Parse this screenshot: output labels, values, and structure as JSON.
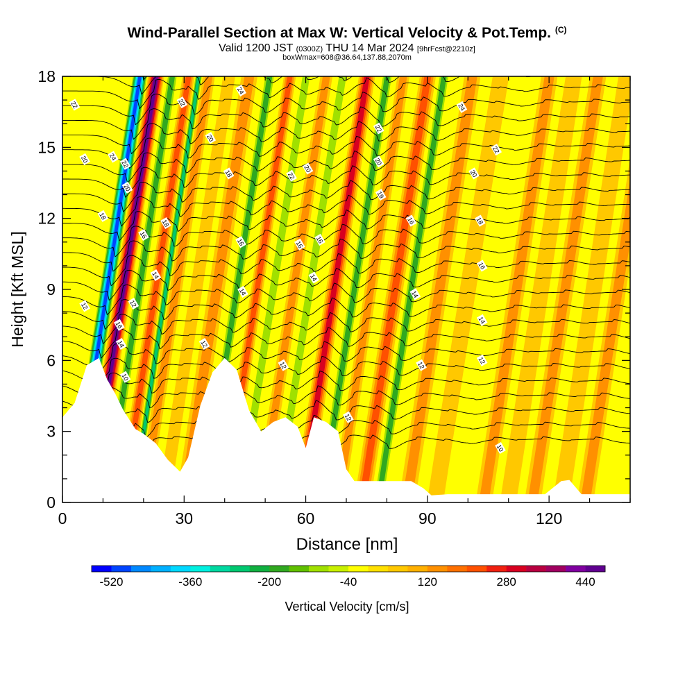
{
  "title": {
    "main": "Wind-Parallel Section at Max W: Vertical Velocity & Pot.Temp.",
    "tag": "(C)",
    "valid_prefix": "Valid 1200 JST",
    "valid_utc": "(0300Z)",
    "valid_suffix": "THU 14 Mar 2024",
    "forecast": "[9hrFcst@2210z]",
    "box": "boxWmax=608@36.64,137.88,2070m"
  },
  "chart_data": {
    "type": "heatmap",
    "xlabel": "Distance [nm]",
    "ylabel": "Height [Kft MSL]",
    "xlim": [
      0,
      140
    ],
    "ylim": [
      0,
      18
    ],
    "x_ticks": [
      "0",
      "30",
      "60",
      "90",
      "120"
    ],
    "x_tick_values": [
      0,
      30,
      60,
      90,
      120
    ],
    "y_ticks": [
      "0",
      "3",
      "6",
      "9",
      "12",
      "15",
      "18"
    ],
    "y_tick_values": [
      0,
      3,
      6,
      9,
      12,
      15,
      18
    ],
    "colorbar": {
      "label": "Vertical Velocity [cm/s]",
      "tick_labels": [
        "-520",
        "-360",
        "-200",
        "-40",
        "120",
        "280",
        "440"
      ],
      "min": -560,
      "step": 40,
      "colors": [
        "#0000ff",
        "#0044ff",
        "#0088ff",
        "#00b0ff",
        "#00d8ff",
        "#00f0e0",
        "#00d8a0",
        "#00c870",
        "#10b040",
        "#30a820",
        "#60c000",
        "#a0e000",
        "#c8f000",
        "#ffff00",
        "#ffe000",
        "#ffc800",
        "#ffb000",
        "#ff9000",
        "#ff7000",
        "#ff5000",
        "#f02010",
        "#d80020",
        "#b80040",
        "#a00060",
        "#8000a0",
        "#600090"
      ]
    },
    "terrain_kft": [
      [
        0,
        3.6
      ],
      [
        3,
        4.2
      ],
      [
        6,
        5.8
      ],
      [
        9,
        6.1
      ],
      [
        11,
        5.2
      ],
      [
        13,
        4.6
      ],
      [
        15,
        3.9
      ],
      [
        18,
        3.1
      ],
      [
        20,
        2.9
      ],
      [
        23,
        2.5
      ],
      [
        26,
        1.8
      ],
      [
        29,
        1.3
      ],
      [
        31,
        1.9
      ],
      [
        34,
        4.1
      ],
      [
        37,
        5.5
      ],
      [
        40,
        6.1
      ],
      [
        43,
        5.6
      ],
      [
        46,
        3.9
      ],
      [
        49,
        3.0
      ],
      [
        52,
        3.4
      ],
      [
        55,
        3.6
      ],
      [
        58,
        3.2
      ],
      [
        60,
        2.3
      ],
      [
        62,
        3.6
      ],
      [
        65,
        3.4
      ],
      [
        68,
        3.0
      ],
      [
        70,
        1.4
      ],
      [
        72,
        0.9
      ],
      [
        75,
        0.9
      ],
      [
        80,
        0.9
      ],
      [
        86,
        0.9
      ],
      [
        89,
        0.6
      ],
      [
        91,
        0.3
      ],
      [
        95,
        0.35
      ],
      [
        100,
        0.35
      ],
      [
        110,
        0.35
      ],
      [
        119,
        0.35
      ],
      [
        123,
        0.9
      ],
      [
        125,
        0.95
      ],
      [
        128,
        0.35
      ],
      [
        140,
        0.35
      ]
    ],
    "velocity_bands": [
      {
        "x": 11,
        "w": -520,
        "width": 4
      },
      {
        "x": 15,
        "w": 480,
        "width": 4
      },
      {
        "x": 19,
        "w": -200,
        "width": 3
      },
      {
        "x": 23,
        "w": 200,
        "width": 3
      },
      {
        "x": 25.5,
        "w": -330,
        "width": 2
      },
      {
        "x": 28,
        "w": 120,
        "width": 3
      },
      {
        "x": 33,
        "w": 80,
        "width": 3
      },
      {
        "x": 38,
        "w": 160,
        "width": 4
      },
      {
        "x": 43,
        "w": -200,
        "width": 3
      },
      {
        "x": 48,
        "w": 200,
        "width": 3
      },
      {
        "x": 52,
        "w": -120,
        "width": 3
      },
      {
        "x": 57,
        "w": 120,
        "width": 3
      },
      {
        "x": 61,
        "w": -160,
        "width": 3
      },
      {
        "x": 67,
        "w": 300,
        "width": 4
      },
      {
        "x": 72,
        "w": -240,
        "width": 3
      },
      {
        "x": 76,
        "w": 160,
        "width": 3
      },
      {
        "x": 82,
        "w": 200,
        "width": 4
      },
      {
        "x": 86,
        "w": -200,
        "width": 3
      },
      {
        "x": 93,
        "w": 120,
        "width": 4
      },
      {
        "x": 100,
        "w": 80,
        "width": 4
      },
      {
        "x": 106,
        "w": -40,
        "width": 4
      },
      {
        "x": 112,
        "w": 120,
        "width": 4
      },
      {
        "x": 118,
        "w": 40,
        "width": 4
      },
      {
        "x": 124,
        "w": 120,
        "width": 4
      },
      {
        "x": 131,
        "w": 40,
        "width": 4
      },
      {
        "x": 137,
        "w": 120,
        "width": 4
      }
    ],
    "contour_labels": [
      {
        "text": "22",
        "x": 3,
        "y": 16.8
      },
      {
        "text": "20",
        "x": 5.5,
        "y": 14.5
      },
      {
        "text": "18",
        "x": 10,
        "y": 12.1
      },
      {
        "text": "12",
        "x": 5.5,
        "y": 8.3
      },
      {
        "text": "24",
        "x": 12.5,
        "y": 14.6
      },
      {
        "text": "22",
        "x": 15.5,
        "y": 14.3
      },
      {
        "text": "20",
        "x": 16,
        "y": 13.3
      },
      {
        "text": "16",
        "x": 20,
        "y": 11.3
      },
      {
        "text": "14",
        "x": 23,
        "y": 9.6
      },
      {
        "text": "12",
        "x": 17.5,
        "y": 8.4
      },
      {
        "text": "16",
        "x": 14,
        "y": 7.5
      },
      {
        "text": "14",
        "x": 14.5,
        "y": 6.7
      },
      {
        "text": "10",
        "x": 15.5,
        "y": 5.3
      },
      {
        "text": "22",
        "x": 29.5,
        "y": 16.9
      },
      {
        "text": "20",
        "x": 36.5,
        "y": 15.4
      },
      {
        "text": "18",
        "x": 25.5,
        "y": 11.8
      },
      {
        "text": "18",
        "x": 41,
        "y": 13.9
      },
      {
        "text": "16",
        "x": 44,
        "y": 11.0
      },
      {
        "text": "14",
        "x": 44.5,
        "y": 8.9
      },
      {
        "text": "12",
        "x": 35,
        "y": 6.7
      },
      {
        "text": "12",
        "x": 54.5,
        "y": 5.8
      },
      {
        "text": "24",
        "x": 44,
        "y": 17.4
      },
      {
        "text": "22",
        "x": 56.5,
        "y": 13.8
      },
      {
        "text": "20",
        "x": 60.5,
        "y": 14.1
      },
      {
        "text": "16",
        "x": 58.5,
        "y": 10.9
      },
      {
        "text": "16",
        "x": 63.5,
        "y": 11.1
      },
      {
        "text": "14",
        "x": 62,
        "y": 9.5
      },
      {
        "text": "12",
        "x": 70.5,
        "y": 3.6
      },
      {
        "text": "22",
        "x": 78,
        "y": 15.8
      },
      {
        "text": "20",
        "x": 78,
        "y": 14.4
      },
      {
        "text": "19",
        "x": 78.5,
        "y": 13.0
      },
      {
        "text": "16",
        "x": 86,
        "y": 11.9
      },
      {
        "text": "14",
        "x": 87,
        "y": 8.8
      },
      {
        "text": "12",
        "x": 88.5,
        "y": 5.8
      },
      {
        "text": "24",
        "x": 98.5,
        "y": 16.7
      },
      {
        "text": "22",
        "x": 107,
        "y": 14.9
      },
      {
        "text": "20",
        "x": 101.5,
        "y": 13.9
      },
      {
        "text": "18",
        "x": 103,
        "y": 11.9
      },
      {
        "text": "16",
        "x": 103.5,
        "y": 10.0
      },
      {
        "text": "14",
        "x": 103.5,
        "y": 7.7
      },
      {
        "text": "12",
        "x": 103.5,
        "y": 6.0
      },
      {
        "text": "10",
        "x": 108,
        "y": 2.3
      }
    ]
  }
}
